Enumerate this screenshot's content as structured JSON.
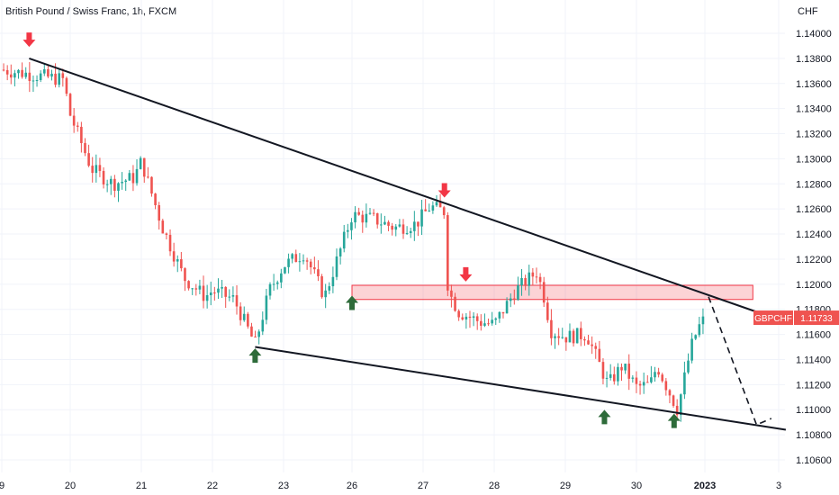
{
  "chart_data": {
    "type": "candlestick",
    "title": "British Pound / Swiss Franc, 1h, FXCM",
    "y_axis": {
      "currency_label": "CHF",
      "range": [
        1.1054,
        1.1418
      ],
      "ticks": [
        "1.14000",
        "1.13800",
        "1.13600",
        "1.13400",
        "1.13200",
        "1.13000",
        "1.12800",
        "1.12600",
        "1.12400",
        "1.12200",
        "1.12000",
        "1.11800",
        "1.11600",
        "1.11400",
        "1.11200",
        "1.11000",
        "1.10800",
        "1.10600"
      ]
    },
    "x_axis": {
      "ticks": [
        "9",
        "20",
        "21",
        "22",
        "23",
        "26",
        "27",
        "28",
        "29",
        "30",
        "2023",
        "3"
      ]
    },
    "colors": {
      "up": "#26a69a",
      "down": "#ef5350",
      "arrow_down": "#f23645",
      "arrow_up": "#2e6b3a",
      "trendline": "#131722",
      "zone_fill": "rgba(242,54,69,0.22)",
      "zone_border": "#f23645"
    },
    "price_path": [
      [
        "9",
        1.1371
      ],
      [
        "9.9",
        1.1363
      ],
      [
        "20.0",
        1.1335
      ],
      [
        "20.3",
        1.1292
      ],
      [
        "20.6",
        1.128
      ],
      [
        "20.9",
        1.1285
      ],
      [
        "21.0",
        1.1298
      ],
      [
        "21.3",
        1.1245
      ],
      [
        "21.6",
        1.1205
      ],
      [
        "21.9",
        1.119
      ],
      [
        "22.0",
        1.1195
      ],
      [
        "22.3",
        1.1188
      ],
      [
        "22.6",
        1.1152
      ],
      [
        "22.8",
        1.1195
      ],
      [
        "23.0",
        1.1215
      ],
      [
        "23.3",
        1.1225
      ],
      [
        "23.6",
        1.119
      ],
      [
        "26.0",
        1.1255
      ],
      [
        "26.3",
        1.1252
      ],
      [
        "26.6",
        1.1245
      ],
      [
        "26.9",
        1.1248
      ],
      [
        "27.1",
        1.1262
      ],
      [
        "27.3",
        1.1258
      ],
      [
        "27.35",
        1.1195
      ],
      [
        "27.5",
        1.1178
      ],
      [
        "27.8",
        1.117
      ],
      [
        "28.0",
        1.1168
      ],
      [
        "28.3",
        1.1195
      ],
      [
        "28.6",
        1.121
      ],
      [
        "28.7",
        1.119
      ],
      [
        "28.8",
        1.1163
      ],
      [
        "29.0",
        1.1158
      ],
      [
        "29.3",
        1.116
      ],
      [
        "29.6",
        1.112
      ],
      [
        "29.8",
        1.1135
      ],
      [
        "30.0",
        1.1118
      ],
      [
        "30.2",
        1.112
      ],
      [
        "30.3",
        1.1135
      ],
      [
        "30.6",
        1.11
      ],
      [
        "30.8",
        1.115
      ],
      [
        "30.9",
        1.1165
      ],
      [
        "2023",
        1.1173
      ]
    ],
    "candles": {
      "approximate": true,
      "count": 190
    },
    "annotations": {
      "upper_trendline": {
        "from": [
          "9.4",
          1.138
        ],
        "to": [
          "2023.7",
          1.1178
        ]
      },
      "lower_trendline": {
        "from": [
          "22.6",
          1.115
        ],
        "to": [
          "3.1",
          1.1084
        ]
      },
      "resistance_zone": {
        "from": "26.0",
        "to": "2023.65",
        "low": 1.119,
        "high": 1.1197
      },
      "projection_dashed": [
        [
          "2023.05",
          1.119
        ],
        [
          "2.7",
          1.1088
        ],
        [
          "2.9",
          1.1093
        ]
      ],
      "arrows_down": [
        [
          "9.4",
          1.1392
        ],
        [
          "27.3",
          1.1272
        ],
        [
          "27.6",
          1.1205
        ]
      ],
      "arrows_up": [
        [
          "26.0",
          1.1188
        ],
        [
          "22.6",
          1.1146
        ],
        [
          "29.55",
          1.1097
        ],
        [
          "30.55",
          1.1094
        ]
      ]
    },
    "price_label": {
      "symbol": "GBPCHF",
      "value": "1.11733"
    }
  }
}
